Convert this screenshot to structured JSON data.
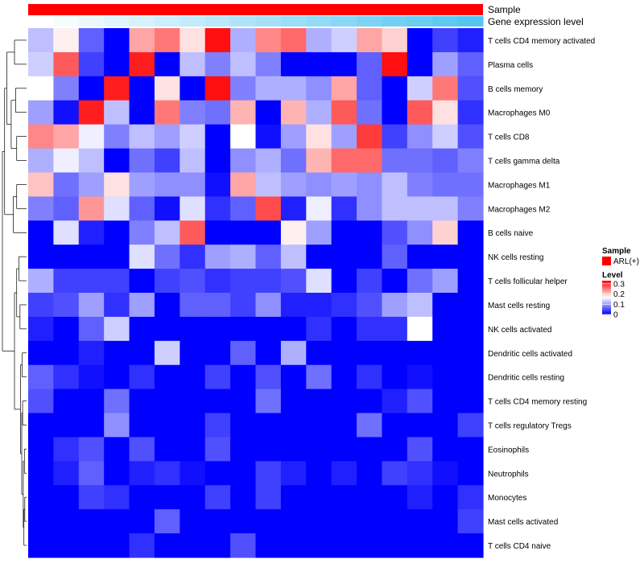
{
  "chart_data": {
    "type": "heatmap",
    "title": "",
    "annotation_tracks": [
      {
        "label": "Sample",
        "kind": "categorical",
        "value": "ARL(+)",
        "color": "#ff0000"
      },
      {
        "label": "Gene expression level",
        "kind": "gradient",
        "low_color": "#ffffff",
        "high_color": "#56c6f1"
      }
    ],
    "row_labels": [
      "T cells CD4 memory activated",
      "Plasma cells",
      "B cells memory",
      "Macrophages M0",
      "T cells CD8",
      "T cells gamma delta",
      "Macrophages M1",
      "Macrophages M2",
      "B cells naive",
      "NK cells resting",
      "T cells follicular helper",
      "Mast cells resting",
      "NK cells activated",
      "Dendritic cells activated",
      "Dendritic cells resting",
      "T cells CD4 memory resting",
      "T cells regulatory  Tregs",
      "Eosinophils",
      "Neutrophils",
      "Monocytes",
      "Mast cells activated",
      "T cells CD4 naive"
    ],
    "n_columns": 18,
    "values": [
      [
        0.12,
        0.17,
        0.06,
        0.0,
        0.22,
        0.25,
        0.18,
        0.32,
        0.11,
        0.24,
        0.26,
        0.11,
        0.13,
        0.22,
        0.19,
        0.0,
        0.04,
        0.02
      ],
      [
        0.13,
        0.27,
        0.04,
        0.0,
        0.31,
        0.0,
        0.12,
        0.08,
        0.12,
        0.08,
        0.0,
        0.0,
        0.0,
        0.06,
        0.32,
        0.0,
        0.1,
        0.06
      ],
      [
        0.16,
        0.08,
        0.0,
        0.31,
        0.0,
        0.18,
        0.0,
        0.32,
        0.08,
        0.11,
        0.11,
        0.09,
        0.22,
        0.06,
        0.0,
        0.13,
        0.25,
        0.05
      ],
      [
        0.1,
        0.01,
        0.31,
        0.12,
        0.0,
        0.25,
        0.08,
        0.07,
        0.21,
        0.0,
        0.21,
        0.11,
        0.27,
        0.07,
        0.0,
        0.27,
        0.18,
        0.03
      ],
      [
        0.24,
        0.22,
        0.15,
        0.08,
        0.12,
        0.1,
        0.13,
        0.0,
        0.16,
        0.01,
        0.1,
        0.18,
        0.1,
        0.29,
        0.04,
        0.09,
        0.13,
        0.05
      ],
      [
        0.11,
        0.15,
        0.12,
        0.0,
        0.07,
        0.04,
        0.12,
        0.0,
        0.09,
        0.11,
        0.07,
        0.21,
        0.26,
        0.26,
        0.07,
        0.07,
        0.06,
        0.08
      ],
      [
        0.2,
        0.07,
        0.1,
        0.18,
        0.1,
        0.09,
        0.09,
        0.01,
        0.22,
        0.12,
        0.1,
        0.09,
        0.1,
        0.09,
        0.12,
        0.08,
        0.07,
        0.07
      ],
      [
        0.08,
        0.06,
        0.23,
        0.14,
        0.06,
        0.01,
        0.14,
        0.03,
        0.06,
        0.28,
        0.02,
        0.15,
        0.03,
        0.09,
        0.12,
        0.12,
        0.12,
        0.08
      ],
      [
        0.0,
        0.14,
        0.02,
        0.0,
        0.08,
        0.12,
        0.27,
        0.0,
        0.0,
        0.0,
        0.17,
        0.1,
        0.0,
        0.0,
        0.05,
        0.09,
        0.19,
        0.0
      ],
      [
        0.0,
        0.0,
        0.0,
        0.0,
        0.14,
        0.07,
        0.03,
        0.1,
        0.11,
        0.06,
        0.12,
        0.0,
        0.0,
        0.0,
        0.06,
        0.0,
        0.0,
        0.0
      ],
      [
        0.11,
        0.04,
        0.04,
        0.04,
        0.0,
        0.04,
        0.05,
        0.03,
        0.04,
        0.04,
        0.05,
        0.14,
        0.0,
        0.04,
        0.0,
        0.07,
        0.1,
        0.0
      ],
      [
        0.04,
        0.05,
        0.1,
        0.03,
        0.1,
        0.0,
        0.06,
        0.06,
        0.04,
        0.09,
        0.02,
        0.02,
        0.03,
        0.05,
        0.1,
        0.12,
        0.0,
        0.0
      ],
      [
        0.02,
        0.0,
        0.06,
        0.13,
        0.0,
        0.0,
        0.0,
        0.0,
        0.0,
        0.0,
        0.0,
        0.03,
        0.0,
        0.03,
        0.03,
        0.16,
        0.0,
        0.0
      ],
      [
        0.0,
        0.0,
        0.02,
        0.0,
        0.0,
        0.13,
        0.0,
        0.0,
        0.06,
        0.0,
        0.11,
        0.0,
        0.0,
        0.0,
        0.0,
        0.0,
        0.0,
        0.0
      ],
      [
        0.06,
        0.03,
        0.01,
        0.0,
        0.03,
        0.0,
        0.0,
        0.04,
        0.0,
        0.05,
        0.0,
        0.07,
        0.0,
        0.03,
        0.0,
        0.01,
        0.0,
        0.0
      ],
      [
        0.05,
        0.0,
        0.0,
        0.07,
        0.0,
        0.0,
        0.0,
        0.0,
        0.0,
        0.07,
        0.0,
        0.0,
        0.0,
        0.0,
        0.02,
        0.05,
        0.0,
        0.0
      ],
      [
        0.0,
        0.0,
        0.0,
        0.09,
        0.0,
        0.0,
        0.0,
        0.04,
        0.0,
        0.0,
        0.0,
        0.0,
        0.0,
        0.07,
        0.0,
        0.0,
        0.0,
        0.04
      ],
      [
        0.0,
        0.03,
        0.05,
        0.0,
        0.05,
        0.0,
        0.0,
        0.05,
        0.0,
        0.0,
        0.0,
        0.0,
        0.0,
        0.0,
        0.0,
        0.05,
        0.0,
        0.0
      ],
      [
        0.0,
        0.02,
        0.06,
        0.0,
        0.02,
        0.03,
        0.01,
        0.0,
        0.0,
        0.04,
        0.02,
        0.0,
        0.02,
        0.0,
        0.04,
        0.03,
        0.01,
        0.0
      ],
      [
        0.0,
        0.0,
        0.04,
        0.03,
        0.0,
        0.0,
        0.0,
        0.04,
        0.0,
        0.04,
        0.0,
        0.0,
        0.0,
        0.0,
        0.0,
        0.02,
        0.0,
        0.03
      ],
      [
        0.0,
        0.0,
        0.0,
        0.0,
        0.0,
        0.06,
        0.0,
        0.0,
        0.0,
        0.0,
        0.0,
        0.0,
        0.0,
        0.0,
        0.0,
        0.0,
        0.0,
        0.04
      ],
      [
        0.0,
        0.0,
        0.0,
        0.0,
        0.03,
        0.0,
        0.0,
        0.0,
        0.05,
        0.0,
        0.0,
        0.0,
        0.0,
        0.0,
        0.0,
        0.0,
        0.0,
        0.0
      ]
    ],
    "color_scale": {
      "min": 0,
      "mid": 0.16,
      "max": 0.33,
      "low_color": "#0000ff",
      "mid_color": "#ffffff",
      "high_color": "#ff0000"
    },
    "legend": {
      "sample_title": "Sample",
      "sample_entry": "ARL(+)",
      "level_title": "Level",
      "level_ticks": [
        {
          "value": 0.3,
          "label": "0.3"
        },
        {
          "value": 0.2,
          "label": "0.2"
        },
        {
          "value": 0.1,
          "label": "0.1"
        },
        {
          "value": 0,
          "label": "0"
        }
      ],
      "position": "right"
    },
    "row_dendrogram": true
  }
}
